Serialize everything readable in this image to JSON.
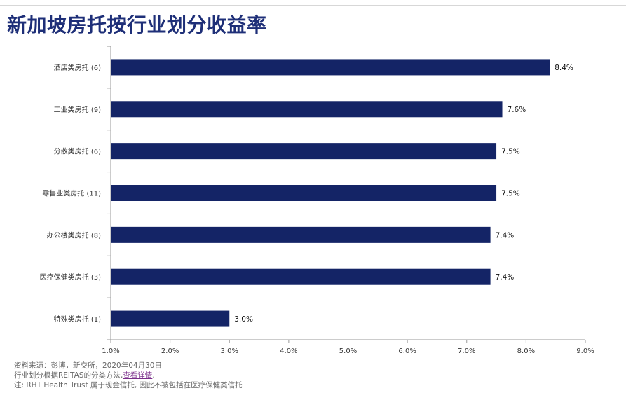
{
  "page": {
    "title": "新加坡房托按行业划分收益率",
    "footer": {
      "source": "资料来源：彭博，新交所，2020年04月30日",
      "method_prefix": "行业划分根据REITAS的分类方法,",
      "method_link": "查看详情",
      "method_suffix": ".",
      "note": "注: RHT Health Trust 属于现金信托, 因此不被包括在医疗保健类信托"
    }
  },
  "colors": {
    "bar": "#142466",
    "title": "#1e2f78",
    "axis": "#9a9a9a",
    "text": "#333333"
  },
  "chart_data": {
    "type": "bar",
    "orientation": "horizontal",
    "title": "新加坡房托按行业划分收益率",
    "xlabel": "",
    "ylabel": "",
    "categories": [
      "酒店类房托 (6)",
      "工业类房托 (9)",
      "分散类房托 (6)",
      "零售业类房托 (11)",
      "办公楼类房托 (8)",
      "医疗保健类房托 (3)",
      "特殊类房托 (1)"
    ],
    "values": [
      8.4,
      7.6,
      7.5,
      7.5,
      7.4,
      7.4,
      3.0
    ],
    "data_labels": [
      "8.4%",
      "7.6%",
      "7.5%",
      "7.5%",
      "7.4%",
      "7.4%",
      "3.0%"
    ],
    "xlim": [
      1.0,
      9.0
    ],
    "xticks": [
      "1.0%",
      "2.0%",
      "3.0%",
      "4.0%",
      "5.0%",
      "6.0%",
      "7.0%",
      "8.0%",
      "9.0%"
    ],
    "grid": false,
    "legend": "none"
  }
}
